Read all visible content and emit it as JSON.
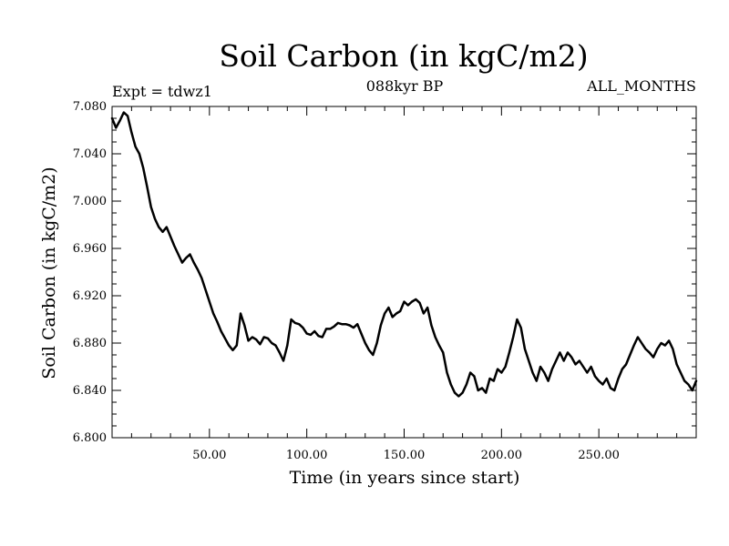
{
  "chart_data": {
    "type": "line",
    "title": "Soil Carbon (in kgC/m2)",
    "left_note": "Expt = tdwz1",
    "center_note": "088kyr BP",
    "right_note": "ALL_MONTHS",
    "xlabel": "Time (in years since start)",
    "ylabel": "Soil Carbon (in kgC/m2)",
    "xlim": [
      0,
      300
    ],
    "ylim": [
      6.8,
      7.08
    ],
    "xticks": [
      50,
      100,
      150,
      200,
      250
    ],
    "xtick_labels": [
      "50.00",
      "100.00",
      "150.00",
      "200.00",
      "250.00"
    ],
    "yticks": [
      6.8,
      6.84,
      6.88,
      6.92,
      6.96,
      7.0,
      7.04,
      7.08
    ],
    "ytick_labels": [
      "6.800",
      "6.840",
      "6.880",
      "6.920",
      "6.960",
      "7.000",
      "7.040",
      "7.080"
    ],
    "grid": false,
    "series": [
      {
        "color": "#000000",
        "x": [
          0,
          2,
          4,
          6,
          8,
          10,
          12,
          14,
          16,
          18,
          20,
          22,
          24,
          26,
          28,
          30,
          32,
          34,
          36,
          38,
          40,
          42,
          44,
          46,
          48,
          50,
          52,
          54,
          56,
          58,
          60,
          62,
          64,
          66,
          68,
          70,
          72,
          74,
          76,
          78,
          80,
          82,
          84,
          86,
          88,
          90,
          92,
          94,
          96,
          98,
          100,
          102,
          104,
          106,
          108,
          110,
          112,
          114,
          116,
          118,
          120,
          122,
          124,
          126,
          128,
          130,
          132,
          134,
          136,
          138,
          140,
          142,
          144,
          146,
          148,
          150,
          152,
          154,
          156,
          158,
          160,
          162,
          164,
          166,
          168,
          170,
          172,
          174,
          176,
          178,
          180,
          182,
          184,
          186,
          188,
          190,
          192,
          194,
          196,
          198,
          200,
          202,
          204,
          206,
          208,
          210,
          212,
          214,
          216,
          218,
          220,
          222,
          224,
          226,
          228,
          230,
          232,
          234,
          236,
          238,
          240,
          242,
          244,
          246,
          248,
          250,
          252,
          254,
          256,
          258,
          260,
          262,
          264,
          266,
          268,
          270,
          272,
          274,
          276,
          278,
          280,
          282,
          284,
          286,
          288,
          290,
          292,
          294,
          296,
          298,
          300
        ],
        "y": [
          7.07,
          7.062,
          7.068,
          7.075,
          7.072,
          7.058,
          7.046,
          7.04,
          7.028,
          7.012,
          6.995,
          6.985,
          6.978,
          6.974,
          6.978,
          6.97,
          6.962,
          6.955,
          6.948,
          6.952,
          6.955,
          6.948,
          6.942,
          6.935,
          6.925,
          6.915,
          6.905,
          6.898,
          6.89,
          6.884,
          6.878,
          6.874,
          6.878,
          6.905,
          6.895,
          6.882,
          6.885,
          6.883,
          6.879,
          6.885,
          6.884,
          6.88,
          6.878,
          6.872,
          6.865,
          6.878,
          6.9,
          6.897,
          6.896,
          6.893,
          6.888,
          6.887,
          6.89,
          6.886,
          6.885,
          6.892,
          6.892,
          6.894,
          6.897,
          6.896,
          6.896,
          6.895,
          6.893,
          6.896,
          6.888,
          6.88,
          6.874,
          6.87,
          6.88,
          6.895,
          6.905,
          6.91,
          6.902,
          6.905,
          6.907,
          6.915,
          6.912,
          6.915,
          6.917,
          6.914,
          6.905,
          6.91,
          6.895,
          6.885,
          6.878,
          6.872,
          6.855,
          6.845,
          6.838,
          6.835,
          6.838,
          6.845,
          6.855,
          6.852,
          6.84,
          6.842,
          6.838,
          6.85,
          6.848,
          6.858,
          6.855,
          6.86,
          6.872,
          6.885,
          6.9,
          6.893,
          6.875,
          6.865,
          6.855,
          6.848,
          6.86,
          6.855,
          6.848,
          6.858,
          6.865,
          6.872,
          6.865,
          6.872,
          6.868,
          6.862,
          6.865,
          6.86,
          6.855,
          6.86,
          6.852,
          6.848,
          6.845,
          6.85,
          6.842,
          6.84,
          6.85,
          6.858,
          6.862,
          6.87,
          6.878,
          6.885,
          6.88,
          6.875,
          6.872,
          6.868,
          6.875,
          6.88,
          6.878,
          6.882,
          6.875,
          6.862,
          6.855,
          6.848,
          6.845,
          6.84,
          6.848
        ]
      }
    ]
  }
}
